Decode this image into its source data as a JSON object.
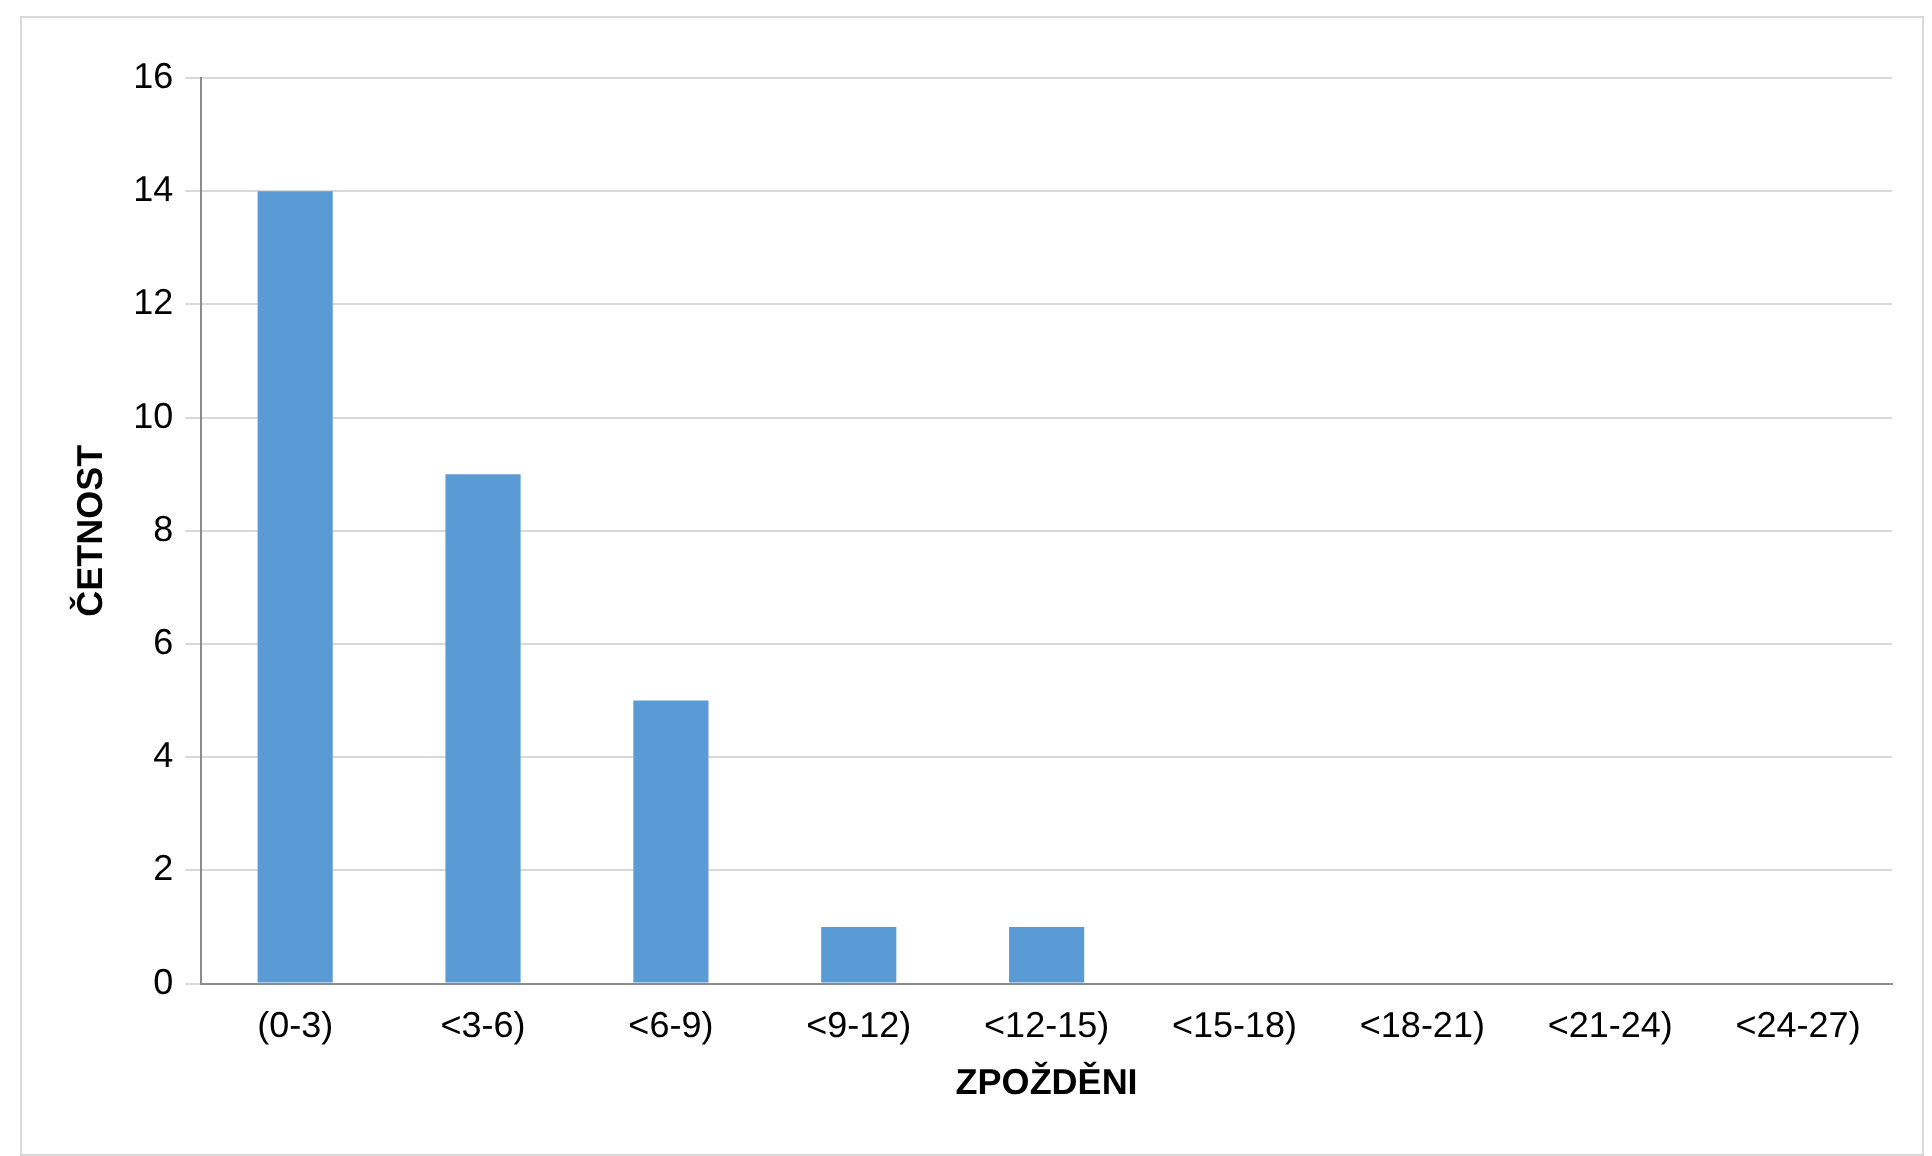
{
  "chart_data": {
    "type": "bar",
    "xlabel": "ZPOŽDĚNI",
    "ylabel": "ČETNOST",
    "categories": [
      "(0-3)",
      "<3-6)",
      "<6-9)",
      "<9-12)",
      "<12-15)",
      "<15-18)",
      "<18-21)",
      "<21-24)",
      "<24-27)"
    ],
    "values": [
      14,
      9,
      5,
      1,
      1,
      0,
      0,
      0,
      0
    ],
    "color": "#5b9bd5",
    "ylim": [
      0,
      16
    ],
    "yticks": [
      0,
      2,
      4,
      6,
      8,
      10,
      12,
      14,
      16
    ],
    "grid": "y",
    "legend": false
  }
}
